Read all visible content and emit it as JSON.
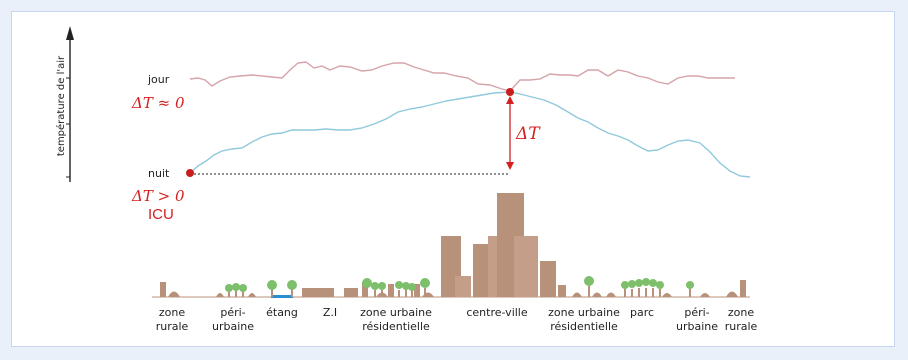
{
  "diagram": {
    "y_axis_label": "température de l'air",
    "label_day": "jour",
    "label_night": "nuit",
    "delta_day": "ΔT  ≈  0",
    "delta_night": "ΔT  >  0",
    "icu_label": "ICU",
    "delta_label": "ΔT",
    "colors": {
      "day_curve": "#d6a3a8",
      "night_curve": "#8fc9dc",
      "building": "#b8917a",
      "tree": "#7dbf6a",
      "water": "#2a8fce",
      "marker": "#c81e1e",
      "frame_bg": "#e9f0fa"
    },
    "zones": [
      {
        "line1": "zone",
        "line2": "rurale"
      },
      {
        "line1": "péri-",
        "line2": "urbaine"
      },
      {
        "line1": "étang",
        "line2": ""
      },
      {
        "line1": "Z.I",
        "line2": ""
      },
      {
        "line1": "zone urbaine",
        "line2": "résidentielle"
      },
      {
        "line1": "centre-ville",
        "line2": ""
      },
      {
        "line1": "zone urbaine",
        "line2": "résidentielle"
      },
      {
        "line1": "parc",
        "line2": ""
      },
      {
        "line1": "péri-",
        "line2": "urbaine"
      },
      {
        "line1": "zone",
        "line2": "rurale"
      }
    ]
  }
}
